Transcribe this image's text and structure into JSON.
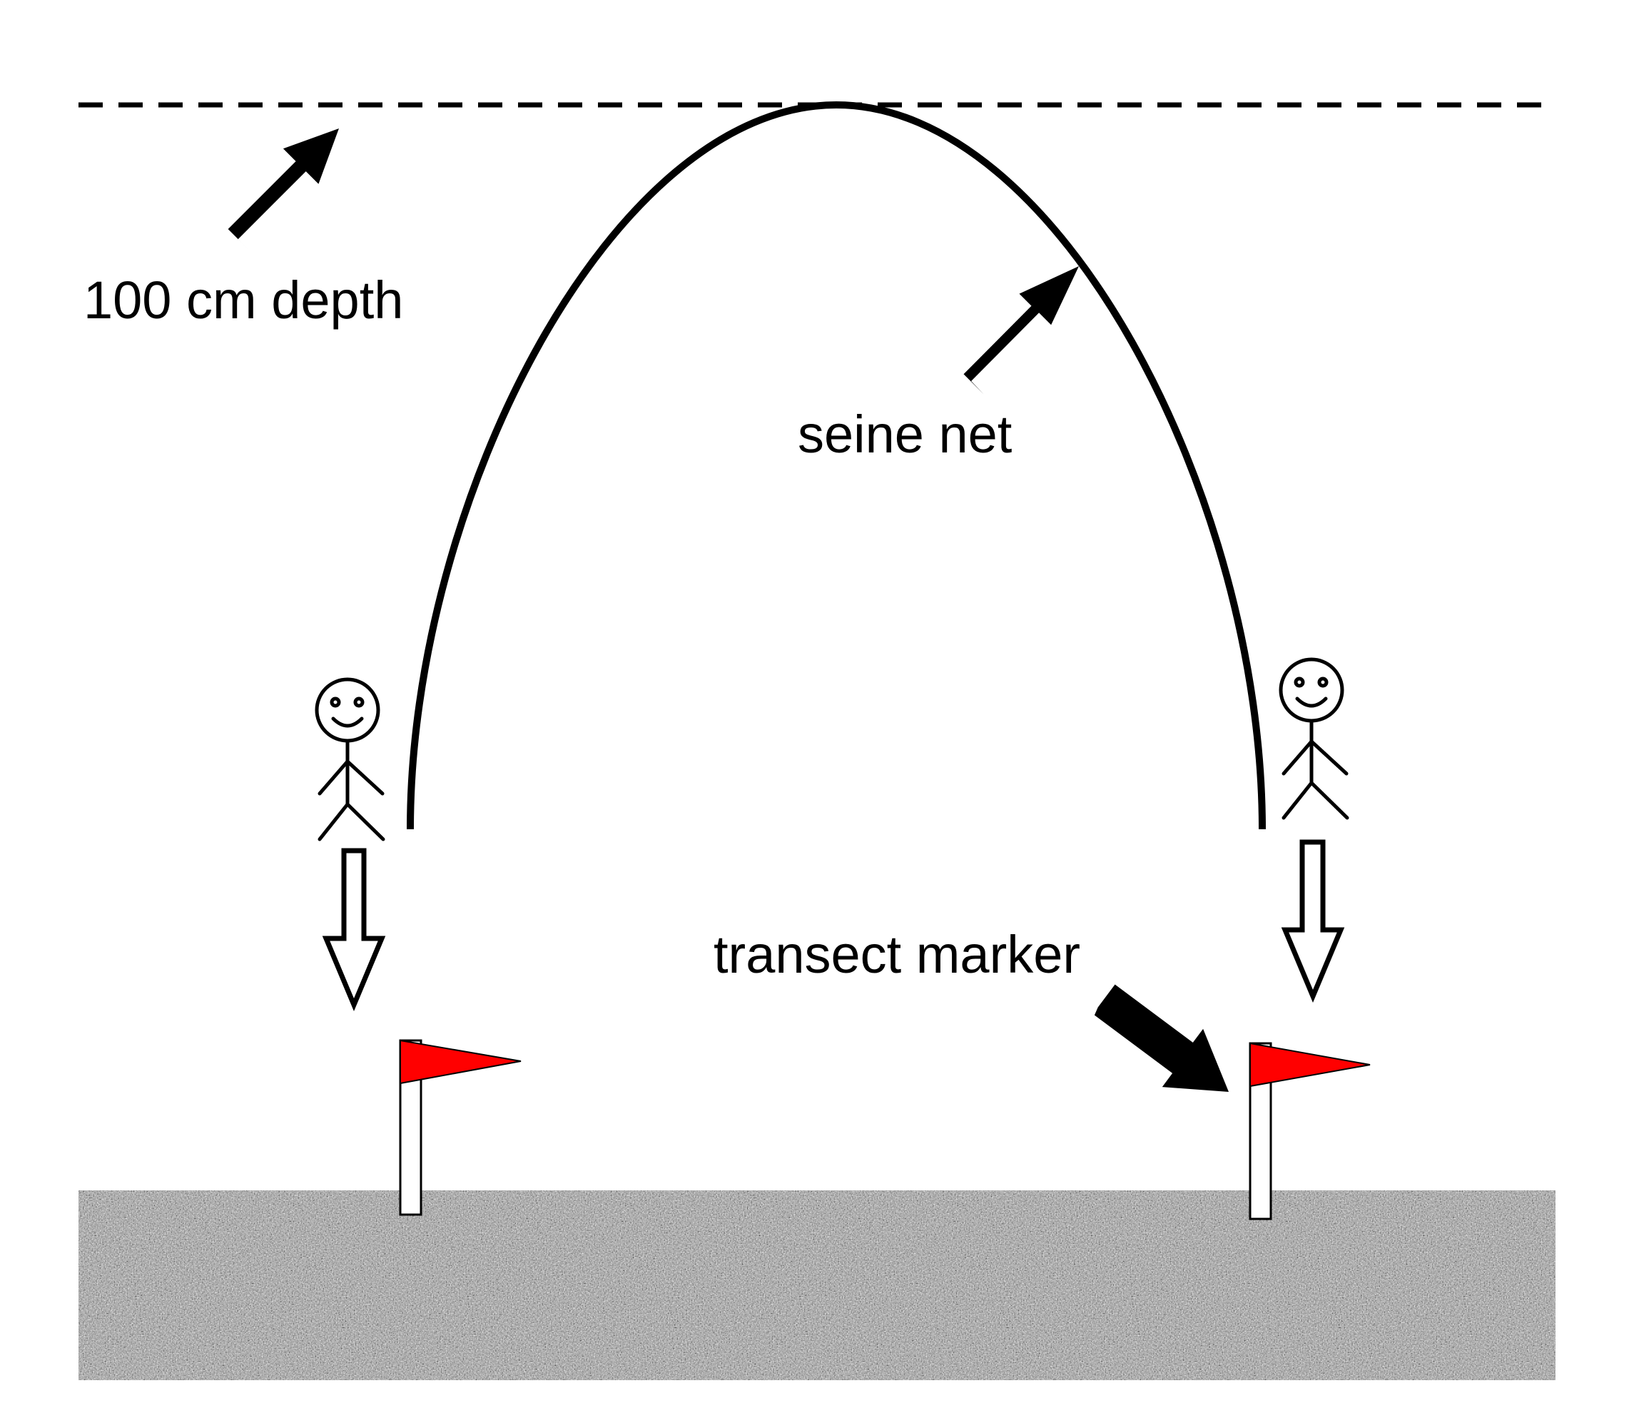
{
  "labels": {
    "depth": "100 cm depth",
    "net": "seine net",
    "marker": "transect marker"
  },
  "colors": {
    "flag": "#ff0000",
    "ink": "#000000",
    "sediment": "#9a9a9a"
  },
  "icons": {
    "person": "stick-figure-icon",
    "flag": "flag-icon",
    "pointer": "arrow-icon",
    "direction": "hollow-arrow-down-icon"
  }
}
